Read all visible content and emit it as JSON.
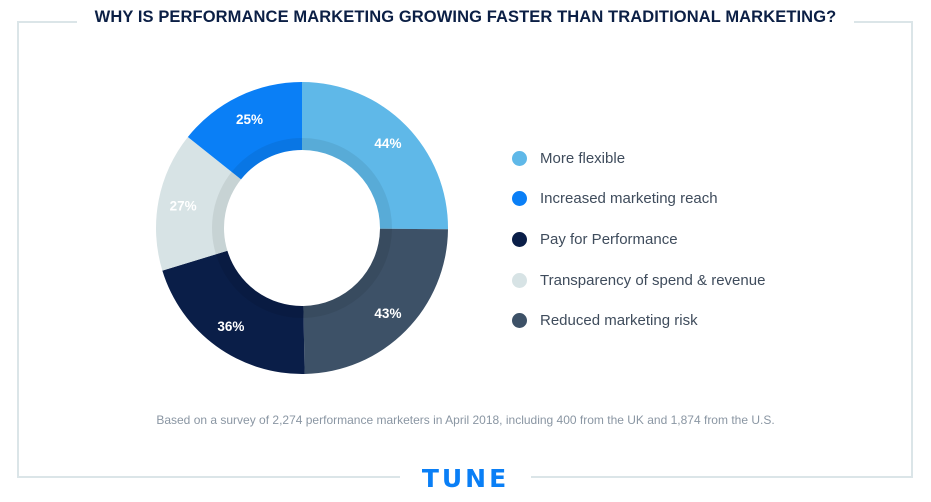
{
  "chart_data": {
    "type": "pie",
    "donut": true,
    "title": "WHY IS PERFORMANCE MARKETING GROWING FASTER THAN TRADITIONAL MARKETING?",
    "categories": [
      "More flexible",
      "Increased marketing reach",
      "Pay for Performance",
      "Transparency of spend & revenue",
      "Reduced marketing risk"
    ],
    "slices": [
      {
        "label": "More flexible",
        "value": 44,
        "display": "44%",
        "color": "#5fb8e8"
      },
      {
        "label": "Reduced marketing risk",
        "value": 43,
        "display": "43%",
        "color": "#3d5167"
      },
      {
        "label": "Pay for Performance",
        "value": 36,
        "display": "36%",
        "color": "#0a1e48"
      },
      {
        "label": "Transparency of spend & revenue",
        "value": 27,
        "display": "27%",
        "color": "#d7e3e5"
      },
      {
        "label": "Increased marketing reach",
        "value": 25,
        "display": "25%",
        "color": "#0a7ff6"
      }
    ],
    "legend": [
      {
        "label": "More flexible",
        "color": "#5fb8e8"
      },
      {
        "label": "Increased marketing reach",
        "color": "#0a7ff6"
      },
      {
        "label": "Pay for Performance",
        "color": "#0a1e48"
      },
      {
        "label": "Transparency of spend & revenue",
        "color": "#d7e3e5"
      },
      {
        "label": "Reduced marketing risk",
        "color": "#3d5167"
      }
    ],
    "legend_position": "right"
  },
  "footnote": "Based on a survey of 2,274 performance marketers in April 2018, including 400 from the UK and 1,874 from the U.S.",
  "brand": "TUNE"
}
